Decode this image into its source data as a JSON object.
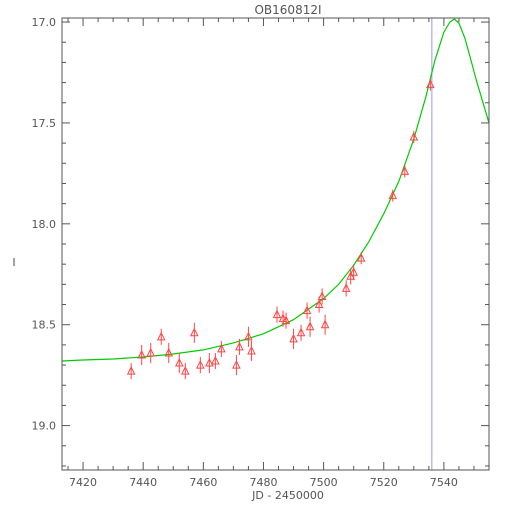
{
  "chart_data": {
    "type": "scatter",
    "title": "OB160812I",
    "xlabel": "JD - 2450000",
    "ylabel": "I",
    "xlim": [
      7413,
      7555
    ],
    "ylim": [
      19.22,
      16.98
    ],
    "y_inverted": true,
    "grid": false,
    "x_ticks": [
      7420,
      7440,
      7460,
      7480,
      7500,
      7520,
      7540
    ],
    "y_ticks": [
      17.0,
      17.5,
      18.0,
      18.5,
      19.0
    ],
    "y_tick_labels": [
      "17.0",
      "17.5",
      "18.0",
      "18.5",
      "19.0"
    ],
    "vertical_line_x": 7536,
    "colors": {
      "points": "#ff4444",
      "model": "#00cc00",
      "vline": "#9999ee",
      "axes": "#555555"
    },
    "observations": [
      {
        "x": 7436.0,
        "y": 18.73,
        "err": 0.04
      },
      {
        "x": 7439.5,
        "y": 18.65,
        "err": 0.05
      },
      {
        "x": 7442.5,
        "y": 18.64,
        "err": 0.05
      },
      {
        "x": 7446.0,
        "y": 18.56,
        "err": 0.04
      },
      {
        "x": 7448.5,
        "y": 18.64,
        "err": 0.05
      },
      {
        "x": 7452.0,
        "y": 18.69,
        "err": 0.05
      },
      {
        "x": 7454.0,
        "y": 18.73,
        "err": 0.04
      },
      {
        "x": 7457.0,
        "y": 18.54,
        "err": 0.05
      },
      {
        "x": 7459.0,
        "y": 18.7,
        "err": 0.04
      },
      {
        "x": 7462.0,
        "y": 18.69,
        "err": 0.05
      },
      {
        "x": 7464.0,
        "y": 18.68,
        "err": 0.04
      },
      {
        "x": 7466.0,
        "y": 18.62,
        "err": 0.04
      },
      {
        "x": 7471.0,
        "y": 18.7,
        "err": 0.05
      },
      {
        "x": 7472.0,
        "y": 18.61,
        "err": 0.04
      },
      {
        "x": 7475.0,
        "y": 18.56,
        "err": 0.05
      },
      {
        "x": 7476.0,
        "y": 18.63,
        "err": 0.05
      },
      {
        "x": 7484.5,
        "y": 18.45,
        "err": 0.04
      },
      {
        "x": 7486.5,
        "y": 18.47,
        "err": 0.04
      },
      {
        "x": 7487.5,
        "y": 18.48,
        "err": 0.04
      },
      {
        "x": 7490.0,
        "y": 18.57,
        "err": 0.05
      },
      {
        "x": 7492.5,
        "y": 18.54,
        "err": 0.04
      },
      {
        "x": 7494.5,
        "y": 18.43,
        "err": 0.04
      },
      {
        "x": 7495.5,
        "y": 18.51,
        "err": 0.05
      },
      {
        "x": 7498.5,
        "y": 18.4,
        "err": 0.04
      },
      {
        "x": 7499.5,
        "y": 18.36,
        "err": 0.04
      },
      {
        "x": 7500.5,
        "y": 18.5,
        "err": 0.05
      },
      {
        "x": 7507.5,
        "y": 18.32,
        "err": 0.04
      },
      {
        "x": 7509.0,
        "y": 18.26,
        "err": 0.04
      },
      {
        "x": 7510.0,
        "y": 18.24,
        "err": 0.04
      },
      {
        "x": 7512.5,
        "y": 18.17,
        "err": 0.03
      },
      {
        "x": 7523.0,
        "y": 17.86,
        "err": 0.03
      },
      {
        "x": 7527.0,
        "y": 17.74,
        "err": 0.03
      },
      {
        "x": 7530.0,
        "y": 17.57,
        "err": 0.03
      },
      {
        "x": 7535.5,
        "y": 17.31,
        "err": 0.03
      }
    ],
    "model": {
      "x": [
        7413,
        7420,
        7430,
        7440,
        7450,
        7460,
        7470,
        7480,
        7490,
        7500,
        7505,
        7510,
        7515,
        7520,
        7525,
        7530,
        7534,
        7537,
        7540,
        7542,
        7543.5,
        7545,
        7547,
        7549,
        7551,
        7553,
        7555
      ],
      "y": [
        18.68,
        18.675,
        18.67,
        18.66,
        18.645,
        18.625,
        18.59,
        18.545,
        18.475,
        18.37,
        18.3,
        18.205,
        18.09,
        17.95,
        17.79,
        17.58,
        17.37,
        17.19,
        17.05,
        17.0,
        16.985,
        17.005,
        17.08,
        17.19,
        17.3,
        17.4,
        17.5
      ]
    }
  }
}
